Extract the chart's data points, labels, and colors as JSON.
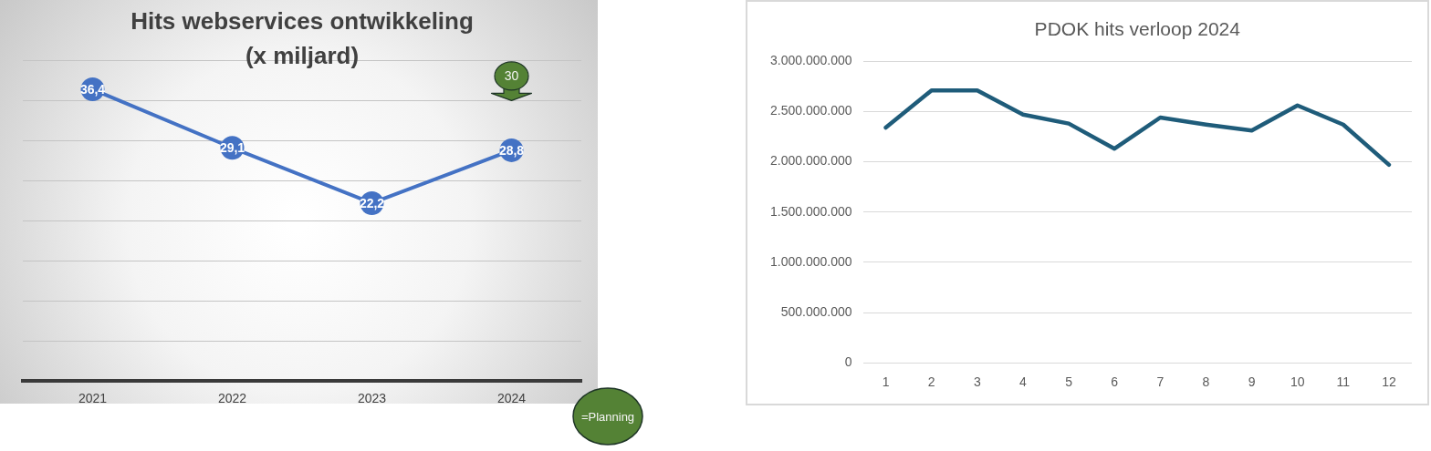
{
  "chart_data": [
    {
      "type": "line",
      "title": "Hits webservices ontwikkeling",
      "subtitle": "(x miljard)",
      "categories": [
        "2021",
        "2022",
        "2023",
        "2024"
      ],
      "series": [
        {
          "color": "#4472c4",
          "values": [
            36.4,
            29.1,
            22.2,
            28.8
          ],
          "value_labels": [
            "36,4",
            "29,1",
            "22,2",
            "28,8"
          ]
        }
      ],
      "marker": "circle",
      "ylim": [
        0,
        40
      ],
      "yticks": [
        {
          "value": 0,
          "label": null
        },
        {
          "value": 5,
          "label": null
        },
        {
          "value": 10,
          "label": null
        },
        {
          "value": 15,
          "label": null
        },
        {
          "value": 20,
          "label": null
        },
        {
          "value": 25,
          "label": null
        },
        {
          "value": 30,
          "label": null
        },
        {
          "value": 35,
          "label": null
        },
        {
          "value": 40,
          "label": null
        }
      ],
      "grid": "y",
      "tick_labels": "x",
      "annotations": [
        {
          "text": "30",
          "x": "2024"
        },
        "=Planning"
      ]
    },
    {
      "type": "line",
      "title": "PDOK hits verloop 2024",
      "x": [
        1,
        2,
        3,
        4,
        5,
        6,
        7,
        8,
        9,
        10,
        11,
        12
      ],
      "series": [
        {
          "color": "#1f5c7a",
          "values": [
            2340000000,
            2710000000,
            2710000000,
            2470000000,
            2380000000,
            2130000000,
            2440000000,
            2370000000,
            2310000000,
            2560000000,
            2370000000,
            1970000000
          ]
        }
      ],
      "xlim": [
        0.5,
        12.5
      ],
      "xticks": [
        1,
        2,
        3,
        4,
        5,
        6,
        7,
        8,
        9,
        10,
        11,
        12
      ],
      "ylim": [
        0,
        3000000000
      ],
      "yticks": [
        0,
        {
          "value": 500000000,
          "label": "500.000.000"
        },
        {
          "value": 1000000000,
          "label": "1.000.000.000"
        },
        {
          "value": 1500000000,
          "label": "1.500.000.000"
        },
        {
          "value": 2000000000,
          "label": "2.000.000.000"
        },
        {
          "value": 2500000000,
          "label": "2.500.000.000"
        },
        {
          "value": 3000000000,
          "label": "3.000.000.000"
        }
      ],
      "grid": "y"
    }
  ]
}
